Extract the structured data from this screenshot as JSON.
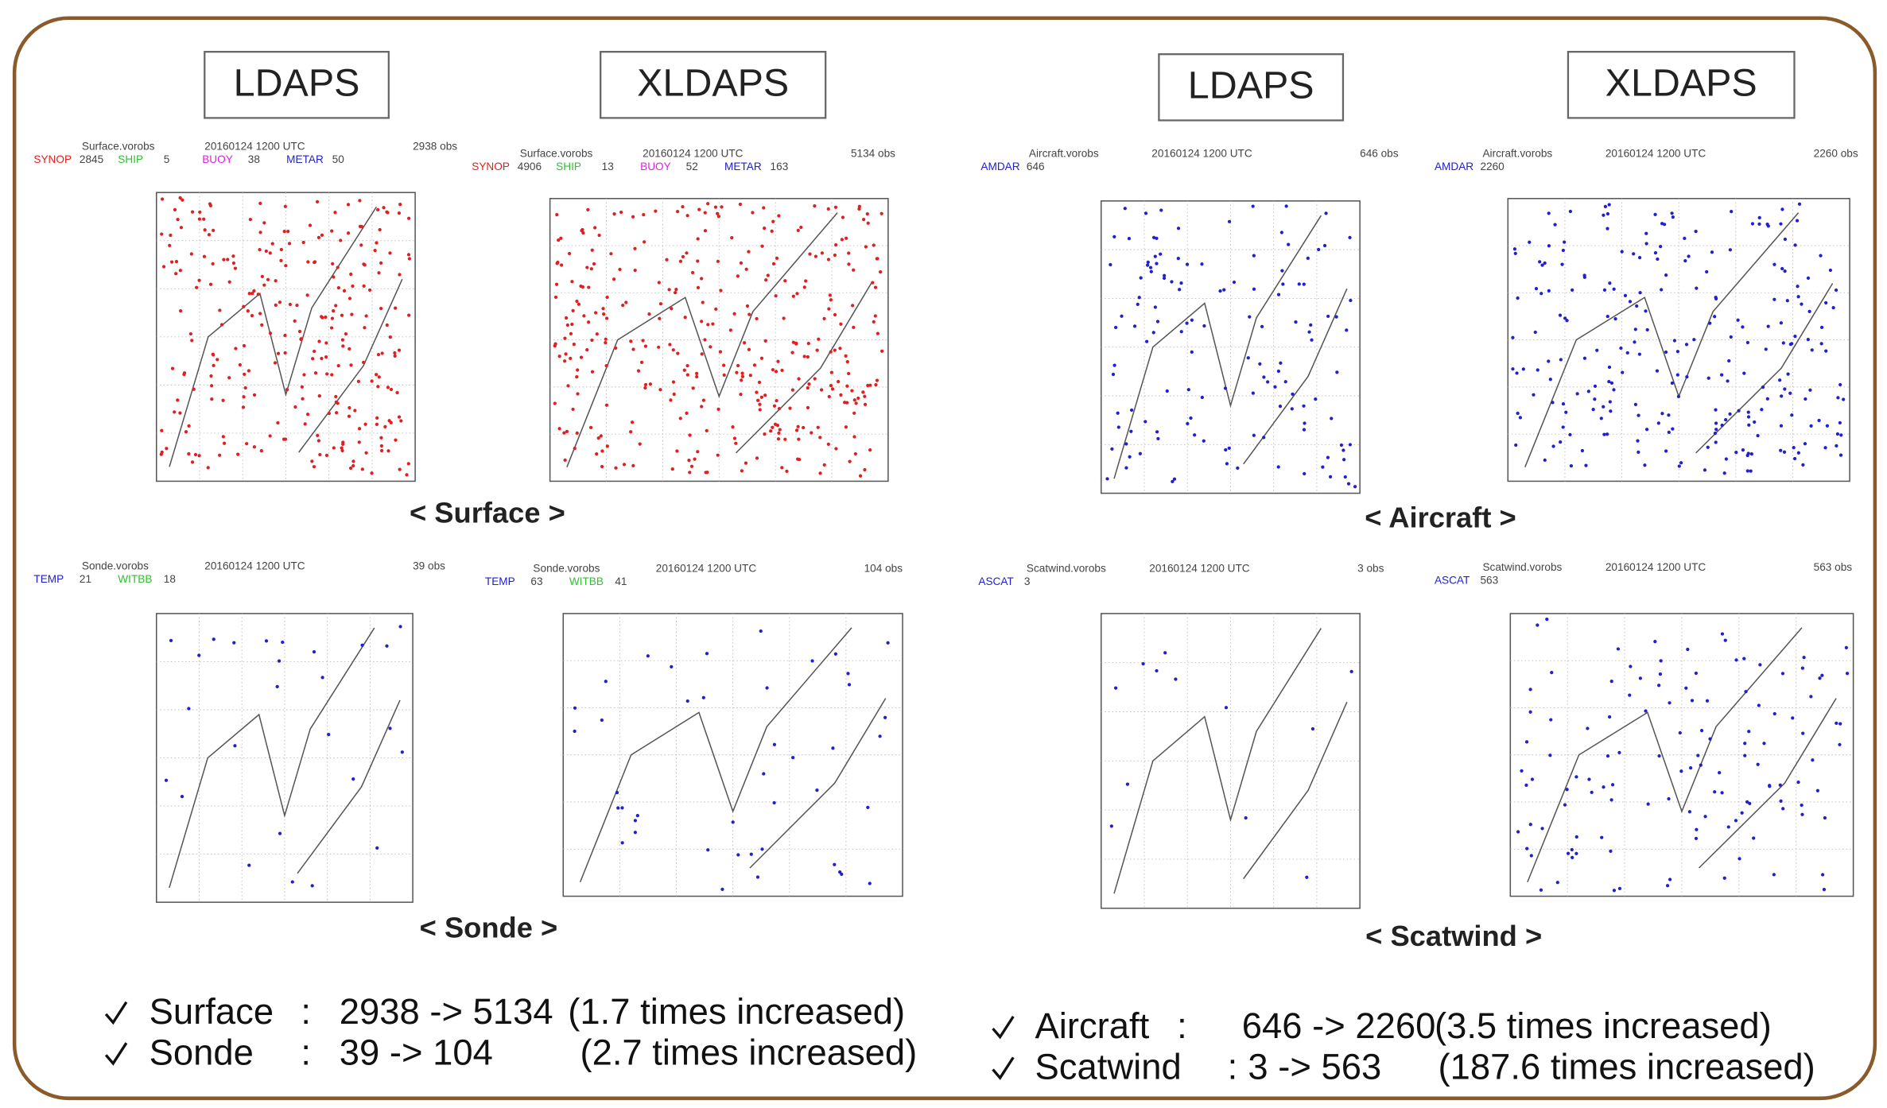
{
  "headers": [
    "LDAPS",
    "XLDAPS",
    "LDAPS",
    "XLDAPS"
  ],
  "panels": [
    {
      "file": "Surface.vorobs",
      "date": "20160124 1200 UTC",
      "count": "2938 obs",
      "legend": [
        {
          "label": "SYNOP",
          "value": "2845",
          "color": "#e02020"
        },
        {
          "label": "SHIP",
          "value": "5",
          "color": "#30c030"
        },
        {
          "label": "BUOY",
          "value": "38",
          "color": "#e020e0"
        },
        {
          "label": "METAR",
          "value": "50",
          "color": "#2020d0"
        }
      ]
    },
    {
      "file": "Surface.vorobs",
      "date": "20160124 1200 UTC",
      "count": "5134 obs",
      "legend": [
        {
          "label": "SYNOP",
          "value": "4906",
          "color": "#e02020"
        },
        {
          "label": "SHIP",
          "value": "13",
          "color": "#30c030"
        },
        {
          "label": "BUOY",
          "value": "52",
          "color": "#e020e0"
        },
        {
          "label": "METAR",
          "value": "163",
          "color": "#2020d0"
        }
      ]
    },
    {
      "file": "Aircraft.vorobs",
      "date": "20160124 1200 UTC",
      "count": "646 obs",
      "legend": [
        {
          "label": "AMDAR",
          "value": "646",
          "color": "#2020d0"
        }
      ]
    },
    {
      "file": "Aircraft.vorobs",
      "date": "20160124 1200 UTC",
      "count": "2260 obs",
      "legend": [
        {
          "label": "AMDAR",
          "value": "2260",
          "color": "#2020d0"
        }
      ]
    },
    {
      "file": "Sonde.vorobs",
      "date": "20160124 1200 UTC",
      "count": "39 obs",
      "legend": [
        {
          "label": "TEMP",
          "value": "21",
          "color": "#2020d0"
        },
        {
          "label": "WITBB",
          "value": "18",
          "color": "#30c030"
        }
      ]
    },
    {
      "file": "Sonde.vorobs",
      "date": "20160124 1200 UTC",
      "count": "104 obs",
      "legend": [
        {
          "label": "TEMP",
          "value": "63",
          "color": "#2020d0"
        },
        {
          "label": "WITBB",
          "value": "41",
          "color": "#30c030"
        }
      ]
    },
    {
      "file": "Scatwind.vorobs",
      "date": "20160124 1200 UTC",
      "count": "3 obs",
      "legend": [
        {
          "label": "ASCAT",
          "value": "3",
          "color": "#2020d0"
        }
      ]
    },
    {
      "file": "Scatwind.vorobs",
      "date": "20160124 1200 UTC",
      "count": "563 obs",
      "legend": [
        {
          "label": "ASCAT",
          "value": "563",
          "color": "#2020d0"
        }
      ]
    }
  ],
  "captions": [
    "< Surface >",
    "< Aircraft >",
    "< Sonde >",
    "< Scatwind >"
  ],
  "summary": [
    [
      "Surface",
      ":",
      "2938 -> 5134",
      "(1.7 times increased)"
    ],
    [
      "Sonde",
      ":",
      "39 -> 104",
      "(2.7 times increased)"
    ],
    [
      "Aircraft",
      ":",
      "646 -> 2260",
      "(3.5 times increased)"
    ],
    [
      "Scatwind",
      ":",
      "3 -> 563",
      "(187.6 times increased)"
    ]
  ]
}
